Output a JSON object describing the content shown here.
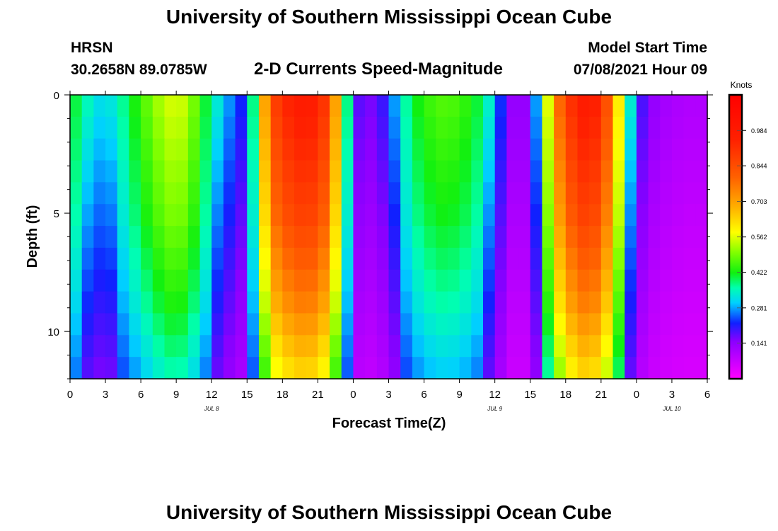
{
  "header": {
    "title": "University of Southern Mississippi Ocean Cube",
    "station": "HRSN",
    "coords": "30.2658N  89.0785W",
    "subtitle": "2-D Currents Speed-Magnitude",
    "model_label": "Model Start Time",
    "model_time": "07/08/2021 Hour 09"
  },
  "footer": {
    "title": "University of Southern Mississippi Ocean Cube"
  },
  "chart_data": {
    "type": "heatmap",
    "title": "2-D Currents Speed-Magnitude",
    "xlabel": "Forecast Time(Z)",
    "ylabel": "Depth (ft)",
    "x_range_hours": [
      0,
      54
    ],
    "x_ticks": [
      {
        "h": 0,
        "label": "0"
      },
      {
        "h": 3,
        "label": "3"
      },
      {
        "h": 6,
        "label": "6"
      },
      {
        "h": 9,
        "label": "9"
      },
      {
        "h": 12,
        "label": "12"
      },
      {
        "h": 15,
        "label": "15"
      },
      {
        "h": 18,
        "label": "18"
      },
      {
        "h": 21,
        "label": "21"
      },
      {
        "h": 24,
        "label": "0"
      },
      {
        "h": 27,
        "label": "3"
      },
      {
        "h": 30,
        "label": "6"
      },
      {
        "h": 33,
        "label": "9"
      },
      {
        "h": 36,
        "label": "12"
      },
      {
        "h": 39,
        "label": "15"
      },
      {
        "h": 42,
        "label": "18"
      },
      {
        "h": 45,
        "label": "21"
      },
      {
        "h": 48,
        "label": "0"
      },
      {
        "h": 51,
        "label": "3"
      },
      {
        "h": 54,
        "label": "6"
      }
    ],
    "date_labels": [
      {
        "h": 12,
        "label": "JUL 8"
      },
      {
        "h": 36,
        "label": "JUL 9"
      },
      {
        "h": 51,
        "label": "JUL 10"
      }
    ],
    "y_range_ft": [
      0,
      12
    ],
    "y_ticks": [
      {
        "v": 0,
        "label": "0"
      },
      {
        "v": 5,
        "label": "5"
      },
      {
        "v": 10,
        "label": "10"
      }
    ],
    "colorbar": {
      "label": "Knots",
      "min": 0.0,
      "max": 1.125,
      "ticks": [
        {
          "v": 0.141,
          "label": "0.141"
        },
        {
          "v": 0.281,
          "label": "0.281"
        },
        {
          "v": 0.422,
          "label": "0.422"
        },
        {
          "v": 0.562,
          "label": "0.562"
        },
        {
          "v": 0.703,
          "label": "0.703"
        },
        {
          "v": 0.844,
          "label": "0.844"
        },
        {
          "v": 0.984,
          "label": "0.984"
        }
      ],
      "stops": [
        {
          "v": 0.0,
          "color": "#ff00ff"
        },
        {
          "v": 0.15,
          "color": "#8a00ff"
        },
        {
          "v": 0.22,
          "color": "#1020ff"
        },
        {
          "v": 0.3,
          "color": "#00d0ff"
        },
        {
          "v": 0.36,
          "color": "#00ffb0"
        },
        {
          "v": 0.42,
          "color": "#10f010"
        },
        {
          "v": 0.5,
          "color": "#80ff00"
        },
        {
          "v": 0.58,
          "color": "#ffff00"
        },
        {
          "v": 0.68,
          "color": "#ffb000"
        },
        {
          "v": 0.8,
          "color": "#ff6000"
        },
        {
          "v": 0.95,
          "color": "#ff2000"
        },
        {
          "v": 1.125,
          "color": "#ff0000"
        }
      ]
    },
    "profile": {
      "time_hours": [
        0,
        1,
        2,
        3,
        4,
        5,
        6,
        7,
        8,
        9,
        10,
        11,
        12,
        13,
        14,
        15,
        16,
        17,
        18,
        19,
        20,
        21,
        22,
        23,
        24,
        25,
        26,
        27,
        28,
        29,
        30,
        31,
        32,
        33,
        34,
        35,
        36,
        37,
        38,
        39,
        40,
        41,
        42,
        43,
        44,
        45,
        46,
        47,
        48,
        49,
        50,
        51,
        52,
        53,
        54
      ],
      "surface_speed": [
        0.42,
        0.38,
        0.32,
        0.31,
        0.34,
        0.4,
        0.45,
        0.5,
        0.54,
        0.56,
        0.53,
        0.45,
        0.36,
        0.3,
        0.24,
        0.2,
        0.55,
        0.84,
        0.92,
        0.96,
        0.98,
        0.95,
        0.85,
        0.55,
        0.2,
        0.15,
        0.17,
        0.22,
        0.33,
        0.4,
        0.44,
        0.46,
        0.47,
        0.45,
        0.43,
        0.38,
        0.3,
        0.15,
        0.12,
        0.15,
        0.4,
        0.72,
        0.86,
        0.96,
        0.98,
        0.92,
        0.75,
        0.45,
        0.22,
        0.15,
        0.12,
        0.11,
        0.1,
        0.1,
        0.1
      ],
      "depth_factor": [
        1.0,
        0.98,
        0.96,
        0.94,
        0.92,
        0.9,
        0.87,
        0.84,
        0.81,
        0.78,
        0.74,
        0.7,
        0.66
      ]
    }
  }
}
